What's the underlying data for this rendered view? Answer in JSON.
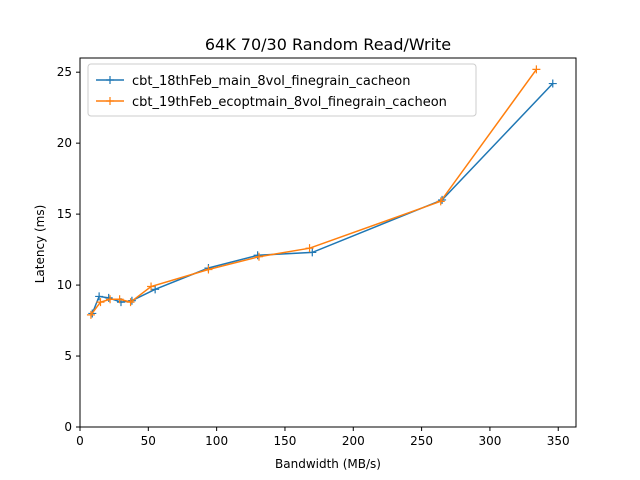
{
  "chart_data": {
    "type": "line",
    "title": "64K 70/30  Random Read/Write",
    "xlabel": "Bandwidth (MB/s)",
    "ylabel": "Latency (ms)",
    "xlim": [
      0,
      363
    ],
    "ylim": [
      0,
      26
    ],
    "xticks": [
      0,
      50,
      100,
      150,
      200,
      250,
      300,
      350
    ],
    "yticks": [
      0,
      5,
      10,
      15,
      20,
      25
    ],
    "grid": false,
    "legend_position": "upper-left",
    "series": [
      {
        "name": "cbt_18thFeb_main_8vol_finegrain_cacheon",
        "color": "#1f77b4",
        "marker": "+",
        "x": [
          9,
          14,
          21,
          30,
          38,
          55,
          94,
          130,
          170,
          265,
          346
        ],
        "y": [
          8.0,
          9.2,
          9.1,
          8.8,
          8.9,
          9.7,
          11.2,
          12.1,
          12.3,
          16.0,
          24.2
        ]
      },
      {
        "name": "cbt_19thFeb_ecoptmain_8vol_finegrain_cacheon",
        "color": "#ff7f0e",
        "marker": "+",
        "x": [
          8,
          15,
          22,
          29,
          37,
          52,
          94,
          131,
          168,
          264,
          334
        ],
        "y": [
          7.9,
          8.8,
          9.0,
          9.0,
          8.8,
          9.9,
          11.1,
          12.0,
          12.6,
          15.9,
          25.2
        ]
      }
    ]
  }
}
